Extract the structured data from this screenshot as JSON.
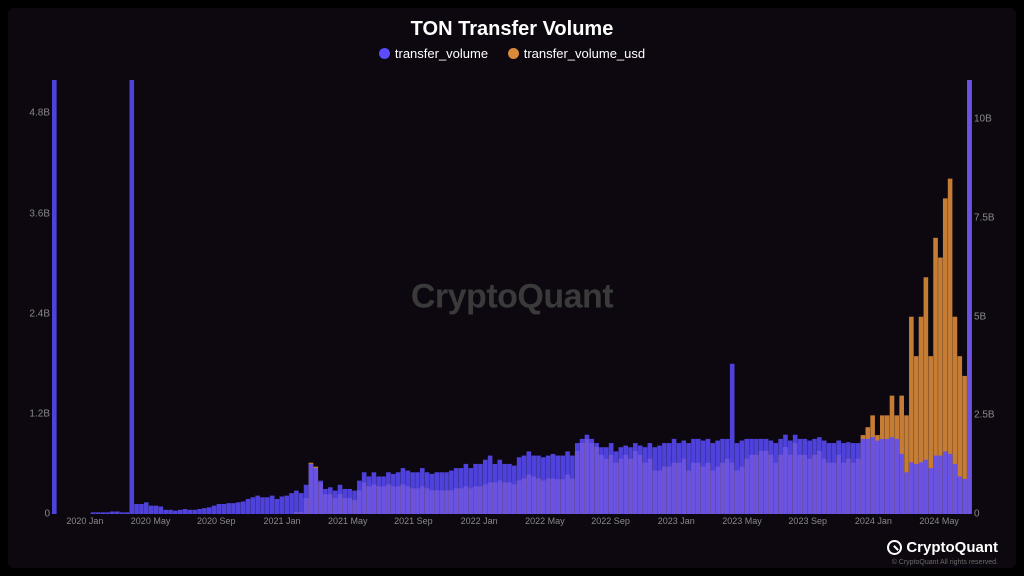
{
  "chart": {
    "type": "bar-dual-axis",
    "title": "TON Transfer Volume",
    "title_fontsize": 20,
    "title_color": "#ffffff",
    "background_color": "#0d0810",
    "page_background": "#000000",
    "watermark_text": "CryptoQuant",
    "watermark_color": "#3a3a3a",
    "watermark_fontsize": 34,
    "legend": {
      "items": [
        {
          "label": "transfer_volume",
          "color": "#5a4cff"
        },
        {
          "label": "transfer_volume_usd",
          "color": "#d98a3a"
        }
      ],
      "fontsize": 13
    },
    "axis_label_color": "#888888",
    "axis_label_fontsize": 10,
    "y_axis_left": {
      "min": 0,
      "max": 5.2,
      "ticks": [
        {
          "value": 0,
          "label": "0"
        },
        {
          "value": 1.2,
          "label": "1.2B"
        },
        {
          "value": 2.4,
          "label": "2.4B"
        },
        {
          "value": 3.6,
          "label": "3.6B"
        },
        {
          "value": 4.8,
          "label": "4.8B"
        }
      ]
    },
    "y_axis_right": {
      "min": 0,
      "max": 11,
      "ticks": [
        {
          "value": 0,
          "label": "0"
        },
        {
          "value": 2.5,
          "label": "2.5B"
        },
        {
          "value": 5,
          "label": "5B"
        },
        {
          "value": 7.5,
          "label": "7.5B"
        },
        {
          "value": 10,
          "label": "10B"
        }
      ]
    },
    "x_axis": {
      "labels": [
        "2020 Jan",
        "2020 May",
        "2020 Sep",
        "2021 Jan",
        "2021 May",
        "2021 Sep",
        "2022 Jan",
        "2022 May",
        "2022 Sep",
        "2023 Jan",
        "2023 May",
        "2023 Sep",
        "2024 Jan",
        "2024 May"
      ],
      "fontsize": 9
    },
    "series": [
      {
        "name": "transfer_volume",
        "color": "#5a4cff",
        "opacity": 0.85,
        "axis": "left",
        "data": [
          5.2,
          0,
          0,
          0,
          0,
          0,
          0,
          0,
          0.02,
          0.02,
          0.02,
          0.02,
          0.03,
          0.03,
          0.02,
          0.02,
          5.2,
          0.12,
          0.12,
          0.14,
          0.1,
          0.1,
          0.09,
          0.05,
          0.05,
          0.04,
          0.05,
          0.06,
          0.05,
          0.05,
          0.06,
          0.07,
          0.08,
          0.1,
          0.12,
          0.12,
          0.13,
          0.13,
          0.14,
          0.15,
          0.18,
          0.2,
          0.22,
          0.2,
          0.2,
          0.22,
          0.18,
          0.21,
          0.22,
          0.25,
          0.28,
          0.25,
          0.35,
          0.6,
          0.55,
          0.4,
          0.3,
          0.32,
          0.28,
          0.35,
          0.3,
          0.3,
          0.28,
          0.4,
          0.5,
          0.45,
          0.5,
          0.45,
          0.45,
          0.5,
          0.48,
          0.5,
          0.55,
          0.52,
          0.5,
          0.5,
          0.55,
          0.5,
          0.48,
          0.5,
          0.5,
          0.5,
          0.52,
          0.55,
          0.55,
          0.6,
          0.55,
          0.6,
          0.6,
          0.65,
          0.7,
          0.6,
          0.65,
          0.6,
          0.6,
          0.58,
          0.68,
          0.7,
          0.75,
          0.7,
          0.7,
          0.68,
          0.7,
          0.72,
          0.7,
          0.7,
          0.75,
          0.7,
          0.85,
          0.9,
          0.95,
          0.9,
          0.85,
          0.8,
          0.8,
          0.85,
          0.75,
          0.8,
          0.82,
          0.8,
          0.85,
          0.82,
          0.8,
          0.85,
          0.8,
          0.82,
          0.85,
          0.85,
          0.9,
          0.85,
          0.88,
          0.85,
          0.9,
          0.9,
          0.88,
          0.9,
          0.85,
          0.88,
          0.9,
          0.9,
          1.8,
          0.85,
          0.88,
          0.9,
          0.9,
          0.9,
          0.9,
          0.9,
          0.88,
          0.85,
          0.9,
          0.95,
          0.88,
          0.95,
          0.9,
          0.9,
          0.88,
          0.9,
          0.92,
          0.88,
          0.85,
          0.85,
          0.88,
          0.85,
          0.86,
          0.85,
          0.85,
          0.9,
          0.9,
          0.92,
          0.88,
          0.9,
          0.9,
          0.92,
          0.9,
          0.72,
          0.5,
          0.62,
          0.6,
          0.62,
          0.65,
          0.55,
          0.7,
          0.7,
          0.75,
          0.72,
          0.6,
          0.45,
          0.42,
          5.2
        ]
      },
      {
        "name": "transfer_volume_usd",
        "color": "#d98a3a",
        "opacity": 0.9,
        "axis": "right",
        "data": [
          0,
          0,
          0,
          0,
          0,
          0,
          0,
          0,
          0,
          0,
          0,
          0,
          0,
          0,
          0,
          0,
          0,
          0,
          0,
          0,
          0,
          0,
          0,
          0,
          0,
          0,
          0,
          0,
          0,
          0,
          0,
          0,
          0,
          0,
          0,
          0,
          0,
          0,
          0,
          0,
          0,
          0,
          0,
          0,
          0,
          0,
          0,
          0,
          0,
          0,
          0.05,
          0.05,
          0.4,
          1.3,
          1.2,
          0.8,
          0.5,
          0.5,
          0.4,
          0.5,
          0.4,
          0.4,
          0.35,
          0.6,
          0.8,
          0.7,
          0.75,
          0.7,
          0.7,
          0.75,
          0.7,
          0.7,
          0.75,
          0.7,
          0.65,
          0.65,
          0.7,
          0.65,
          0.6,
          0.6,
          0.6,
          0.6,
          0.6,
          0.65,
          0.65,
          0.7,
          0.65,
          0.7,
          0.7,
          0.75,
          0.8,
          0.8,
          0.85,
          0.8,
          0.8,
          0.75,
          0.85,
          0.9,
          1.0,
          0.95,
          0.9,
          0.85,
          0.9,
          0.9,
          0.88,
          0.88,
          1.0,
          0.9,
          1.6,
          1.8,
          1.9,
          1.8,
          1.7,
          1.5,
          1.4,
          1.5,
          1.3,
          1.4,
          1.5,
          1.4,
          1.6,
          1.5,
          1.3,
          1.4,
          1.1,
          1.1,
          1.2,
          1.2,
          1.3,
          1.3,
          1.4,
          1.1,
          1.3,
          1.3,
          1.2,
          1.3,
          1.1,
          1.2,
          1.3,
          1.4,
          1.3,
          1.1,
          1.2,
          1.4,
          1.5,
          1.5,
          1.6,
          1.6,
          1.5,
          1.3,
          1.5,
          1.7,
          1.5,
          1.8,
          1.5,
          1.5,
          1.4,
          1.5,
          1.6,
          1.4,
          1.3,
          1.3,
          1.5,
          1.3,
          1.4,
          1.3,
          1.4,
          2.0,
          2.2,
          2.5,
          2.0,
          2.5,
          2.5,
          3.0,
          2.5,
          3.0,
          2.5,
          5.0,
          4.0,
          5.0,
          6.0,
          4.0,
          7.0,
          6.5,
          8.0,
          8.5,
          5.0,
          4.0,
          3.5,
          11.0
        ]
      }
    ],
    "brand": {
      "name": "CryptoQuant",
      "copyright": "© CryptoQuant All rights reserved.",
      "color": "#ffffff"
    }
  }
}
